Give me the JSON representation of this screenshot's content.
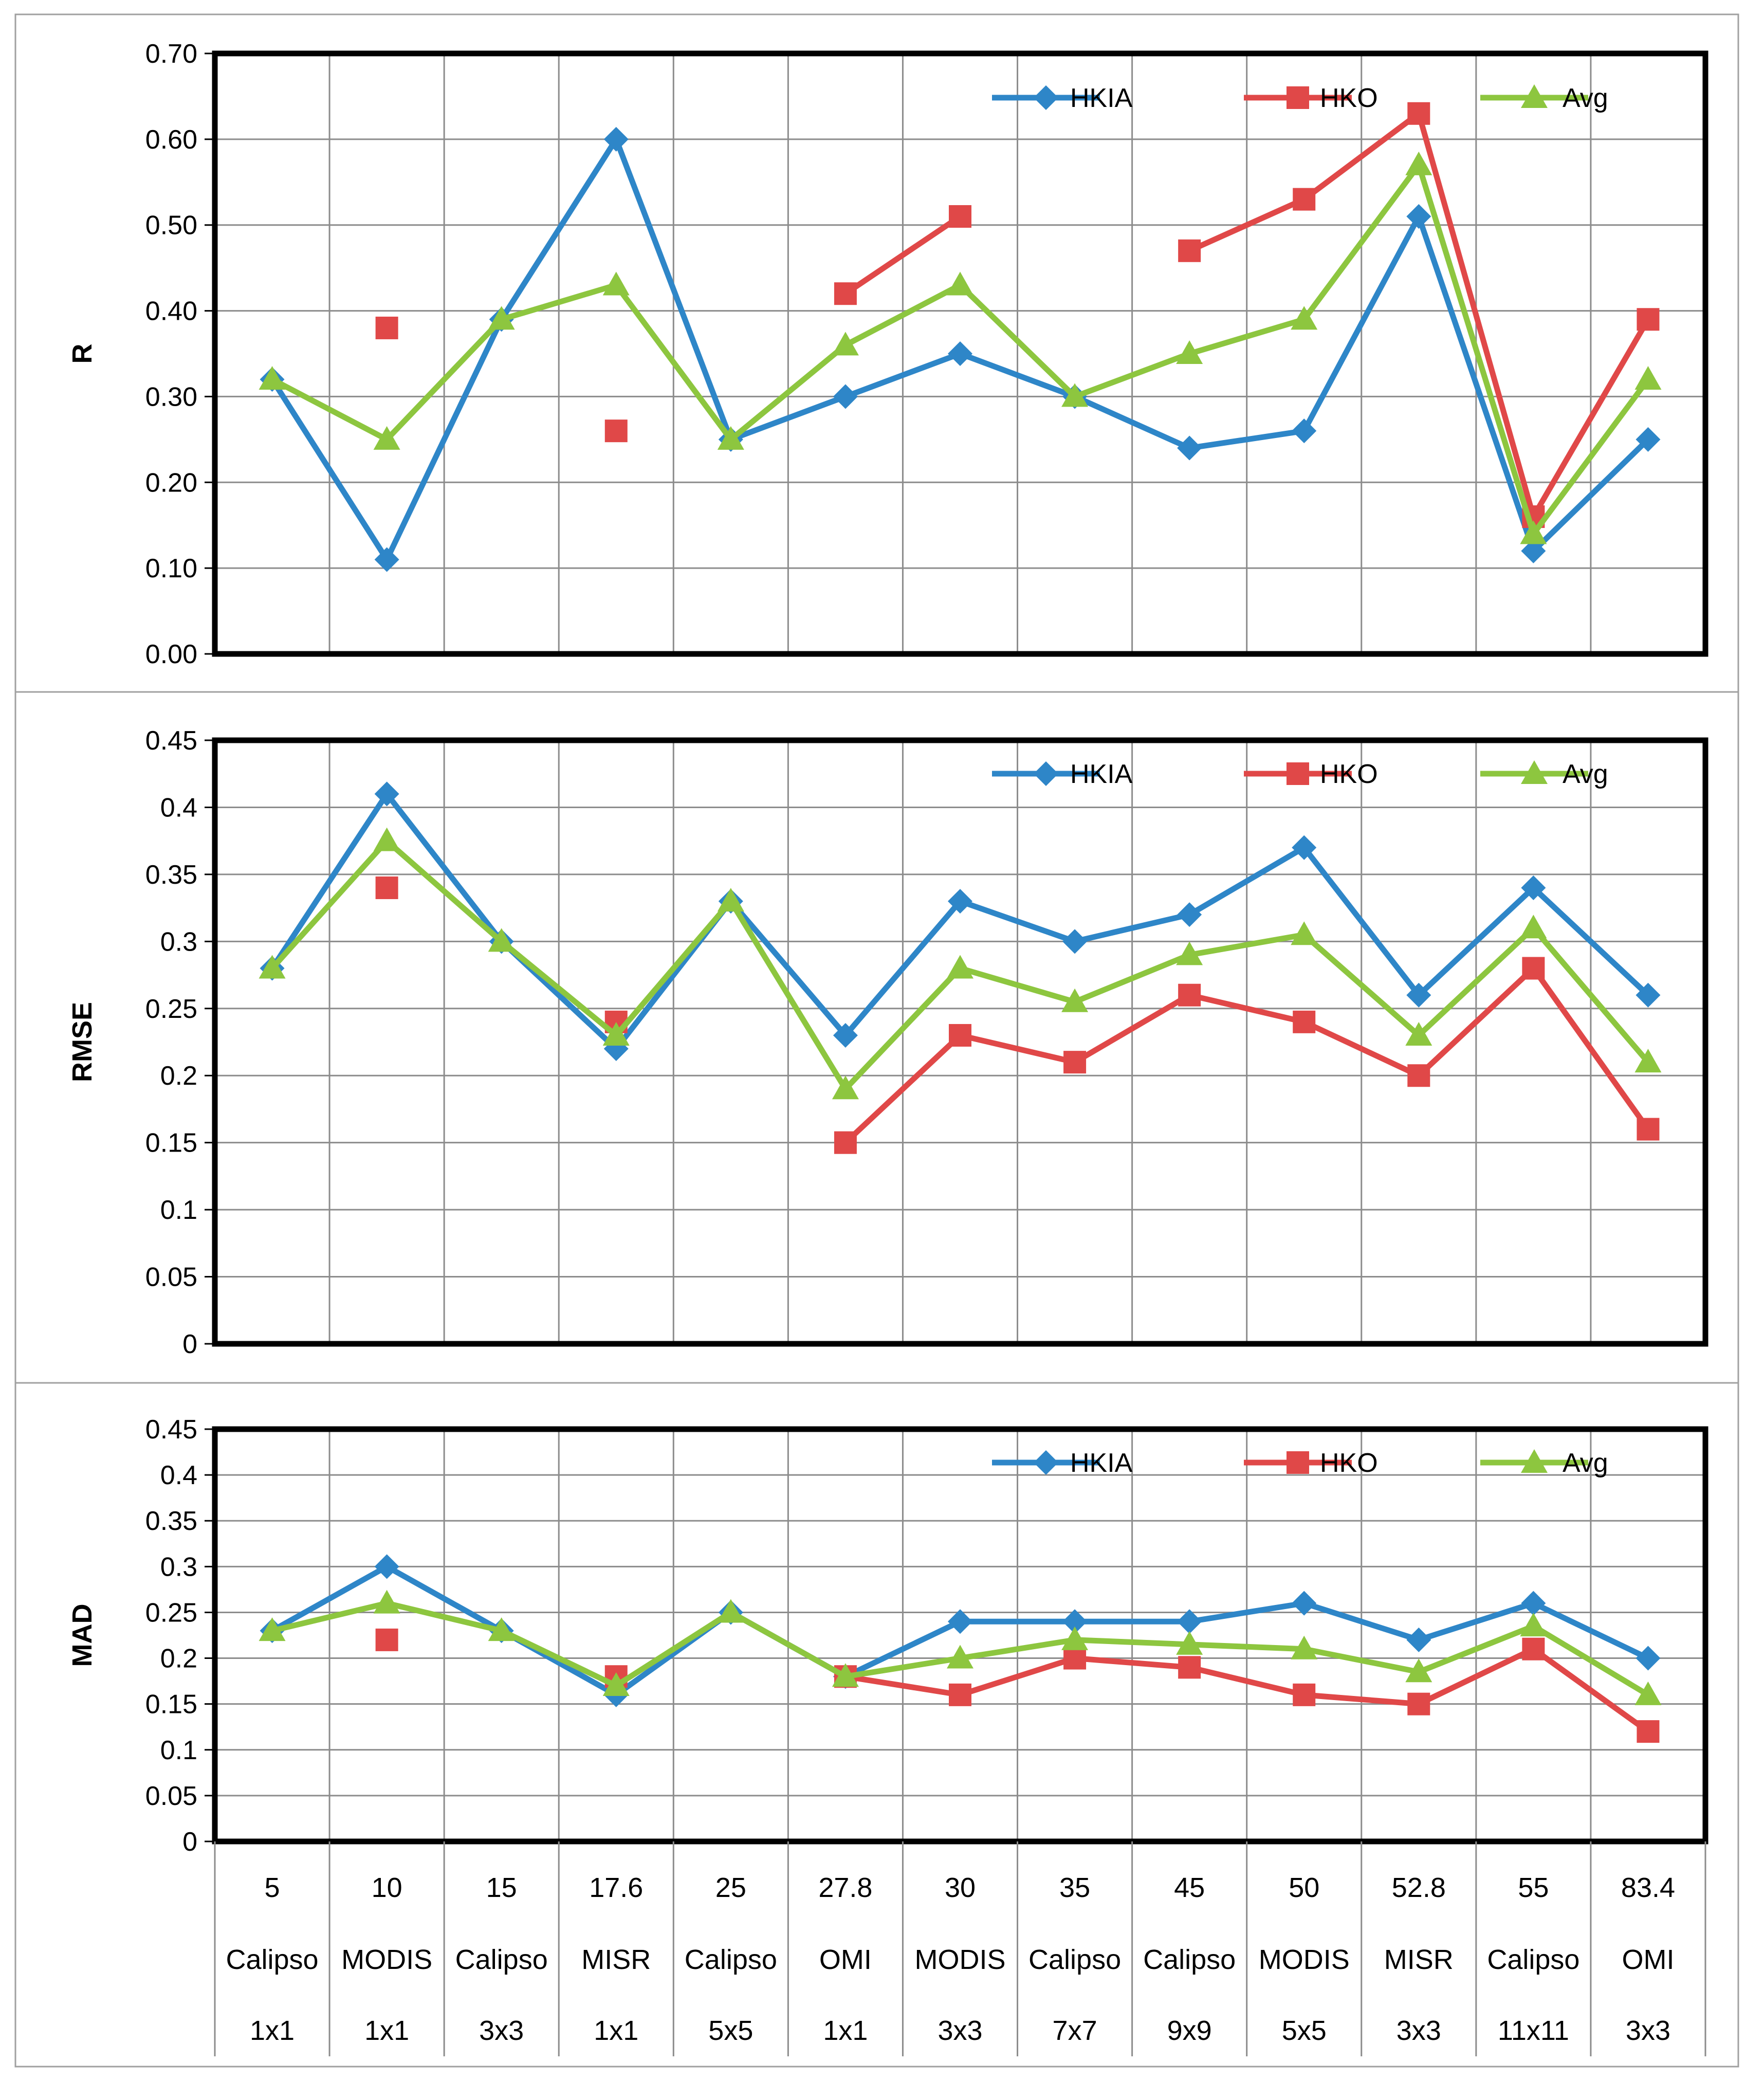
{
  "colors": {
    "HKIA": "#2E86C8",
    "HKO": "#E04848",
    "Avg": "#8DC63F",
    "grid": "#8c8c8c",
    "frame": "#000000",
    "panel_border": "#a0a0a0"
  },
  "categories": [
    {
      "value": "5",
      "sensor": "Calipso",
      "grid": "1x1"
    },
    {
      "value": "10",
      "sensor": "MODIS",
      "grid": "1x1"
    },
    {
      "value": "15",
      "sensor": "Calipso",
      "grid": "3x3"
    },
    {
      "value": "17.6",
      "sensor": "MISR",
      "grid": "1x1"
    },
    {
      "value": "25",
      "sensor": "Calipso",
      "grid": "5x5"
    },
    {
      "value": "27.8",
      "sensor": "OMI",
      "grid": "1x1"
    },
    {
      "value": "30",
      "sensor": "MODIS",
      "grid": "3x3"
    },
    {
      "value": "35",
      "sensor": "Calipso",
      "grid": "7x7"
    },
    {
      "value": "45",
      "sensor": "Calipso",
      "grid": "9x9"
    },
    {
      "value": "50",
      "sensor": "MODIS",
      "grid": "5x5"
    },
    {
      "value": "52.8",
      "sensor": "MISR",
      "grid": "3x3"
    },
    {
      "value": "55",
      "sensor": "Calipso",
      "grid": "11x11"
    },
    {
      "value": "83.4",
      "sensor": "OMI",
      "grid": "3x3"
    }
  ],
  "chart_data": [
    {
      "type": "line",
      "ylabel": "R",
      "ylim": [
        0,
        0.7
      ],
      "ytick_labels": [
        "0.00",
        "0.10",
        "0.20",
        "0.30",
        "0.40",
        "0.50",
        "0.60",
        "0.70"
      ],
      "legend_position": "top-right",
      "series": [
        {
          "name": "HKIA",
          "values": [
            0.32,
            0.11,
            0.39,
            0.6,
            0.25,
            0.3,
            0.35,
            0.3,
            0.24,
            0.26,
            0.51,
            0.12,
            0.25
          ]
        },
        {
          "name": "HKO",
          "values": [
            null,
            0.38,
            null,
            0.26,
            null,
            0.42,
            0.51,
            null,
            0.47,
            0.53,
            0.63,
            0.16,
            0.39
          ]
        },
        {
          "name": "Avg",
          "values": [
            0.32,
            0.25,
            0.39,
            0.43,
            0.25,
            0.36,
            0.43,
            0.3,
            0.35,
            0.39,
            0.57,
            0.14,
            0.32
          ]
        }
      ]
    },
    {
      "type": "line",
      "ylabel": "RMSE",
      "ylim": [
        0,
        0.45
      ],
      "ytick_labels": [
        "0",
        "0.05",
        "0.1",
        "0.15",
        "0.2",
        "0.25",
        "0.3",
        "0.35",
        "0.4",
        "0.45"
      ],
      "legend_position": "top-right",
      "series": [
        {
          "name": "HKIA",
          "values": [
            0.28,
            0.41,
            0.3,
            0.22,
            0.33,
            0.23,
            0.33,
            0.3,
            0.32,
            0.37,
            0.26,
            0.34,
            0.26
          ]
        },
        {
          "name": "HKO",
          "values": [
            null,
            0.34,
            null,
            0.24,
            null,
            0.15,
            0.23,
            0.21,
            0.26,
            0.24,
            0.2,
            0.28,
            0.16
          ]
        },
        {
          "name": "Avg",
          "values": [
            0.28,
            0.375,
            0.3,
            0.23,
            0.33,
            0.19,
            0.28,
            0.255,
            0.29,
            0.305,
            0.23,
            0.31,
            0.21
          ]
        }
      ]
    },
    {
      "type": "line",
      "ylabel": "MAD",
      "ylim": [
        0,
        0.45
      ],
      "ytick_labels": [
        "0",
        "0.05",
        "0.1",
        "0.15",
        "0.2",
        "0.25",
        "0.3",
        "0.35",
        "0.4",
        "0.45"
      ],
      "legend_position": "top-right",
      "series": [
        {
          "name": "HKIA",
          "values": [
            0.23,
            0.3,
            0.23,
            0.16,
            0.25,
            0.18,
            0.24,
            0.24,
            0.24,
            0.26,
            0.22,
            0.26,
            0.2
          ]
        },
        {
          "name": "HKO",
          "values": [
            null,
            0.22,
            null,
            0.18,
            null,
            0.18,
            0.16,
            0.2,
            0.19,
            0.16,
            0.15,
            0.21,
            0.12
          ]
        },
        {
          "name": "Avg",
          "values": [
            0.23,
            0.26,
            0.23,
            0.17,
            0.25,
            0.18,
            0.2,
            0.22,
            0.215,
            0.21,
            0.185,
            0.235,
            0.16
          ]
        }
      ]
    }
  ]
}
